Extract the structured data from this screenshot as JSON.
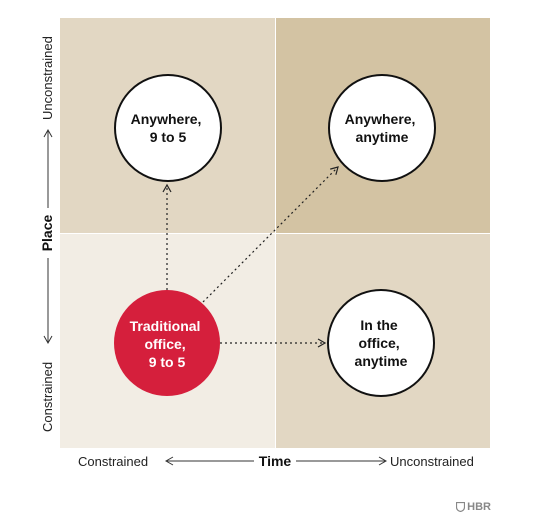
{
  "diagram": {
    "quadrants": {
      "top_left": {
        "color": "#e2d7c3"
      },
      "top_right": {
        "color": "#d3c3a3"
      },
      "bottom_left": {
        "color": "#f2ede4"
      },
      "bottom_right": {
        "color": "#e2d7c3"
      }
    },
    "circles": {
      "anywhere_9_to_5": {
        "lines": [
          "Anywhere,",
          "9 to 5"
        ]
      },
      "anywhere_anytime": {
        "lines": [
          "Anywhere,",
          "anytime"
        ]
      },
      "traditional_office": {
        "lines": [
          "Traditional",
          "office,",
          "9 to 5"
        ],
        "color": "#d51f3c"
      },
      "in_the_office_anytime": {
        "lines": [
          "In the",
          "office,",
          "anytime"
        ]
      }
    },
    "x_axis": {
      "title": "Time",
      "low_label": "Constrained",
      "high_label": "Unconstrained"
    },
    "y_axis": {
      "title": "Place",
      "low_label": "Constrained",
      "high_label": "Unconstrained"
    }
  },
  "brand": {
    "label": "HBR",
    "icon": "shield-icon"
  }
}
